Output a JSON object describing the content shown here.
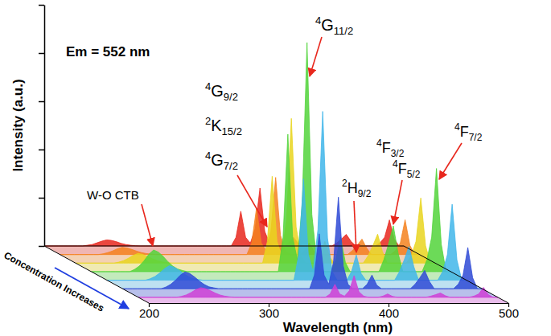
{
  "chart_data": {
    "type": "waterfall",
    "x_label": "Wavelength (nm)",
    "y_label": "Intensity (a.u.)",
    "z_label": "Concentration Increases",
    "annotations": [
      {
        "text": "Em = 552 nm"
      },
      {
        "text": "4G11/2"
      },
      {
        "text": "4G9/2"
      },
      {
        "text": "2K15/2"
      },
      {
        "text": "4G7/2"
      },
      {
        "text": "2H9/2"
      },
      {
        "text": "4F3/2"
      },
      {
        "text": "4F5/2"
      },
      {
        "text": "4F7/2"
      },
      {
        "text": "W-O CTB"
      }
    ],
    "xlim": [
      200,
      500
    ],
    "xticks": [
      200,
      300,
      400,
      500
    ],
    "ylim": [
      0,
      10
    ],
    "yticks": [
      0,
      2,
      4,
      6,
      8,
      10
    ],
    "tick_labels": "x",
    "x": [
      200,
      204,
      208,
      212,
      216,
      220,
      224,
      228,
      232,
      236,
      240,
      244,
      248,
      252,
      256,
      260,
      264,
      268,
      272,
      276,
      280,
      284,
      288,
      292,
      296,
      300,
      304,
      308,
      312,
      316,
      320,
      324,
      328,
      332,
      336,
      340,
      344,
      348,
      352,
      356,
      360,
      364,
      368,
      372,
      376,
      380,
      384,
      388,
      392,
      396,
      400,
      404,
      408,
      412,
      416,
      420,
      424,
      428,
      432,
      436,
      440,
      444,
      448,
      452,
      456,
      460,
      464,
      468,
      472,
      476,
      480,
      484,
      488,
      492,
      496,
      500
    ],
    "series": [
      {
        "color": "#e8271d",
        "values": [
          0,
          0,
          0,
          0,
          0,
          0,
          0,
          0,
          0,
          0.03,
          0.06,
          0.13,
          0.2,
          0.25,
          0.23,
          0.18,
          0.11,
          0.06,
          0.03,
          0.01,
          0,
          0,
          0,
          0,
          0,
          0,
          0,
          0,
          0,
          0,
          0,
          0,
          0,
          0,
          0,
          0,
          0,
          0,
          0,
          0,
          0.36,
          1.44,
          0.36,
          0.12,
          0.72,
          2.4,
          0.6,
          0.12,
          0,
          0,
          0,
          0.12,
          0.36,
          0.1,
          0,
          0,
          0,
          0,
          0,
          0,
          0,
          0.12,
          0.29,
          0.48,
          0.19,
          0,
          0,
          0,
          0,
          0,
          0.12,
          0.36,
          1.08,
          0.29,
          0,
          0
        ]
      },
      {
        "color": "#f5821f",
        "values": [
          0,
          0,
          0,
          0,
          0,
          0,
          0,
          0,
          0,
          0.03,
          0.08,
          0.15,
          0.24,
          0.3,
          0.27,
          0.21,
          0.14,
          0.08,
          0.04,
          0.02,
          0,
          0,
          0,
          0,
          0,
          0,
          0,
          0,
          0,
          0,
          0,
          0,
          0,
          0,
          0,
          0,
          0,
          0,
          0,
          0,
          0.48,
          1.92,
          0.48,
          0.16,
          0.96,
          3.2,
          0.8,
          0.16,
          0,
          0,
          0,
          0.16,
          0.48,
          0.13,
          0,
          0,
          0,
          0,
          0,
          0,
          0,
          0.16,
          0.38,
          0.64,
          0.26,
          0,
          0,
          0,
          0,
          0,
          0.16,
          0.48,
          1.44,
          0.38,
          0,
          0
        ]
      },
      {
        "color": "#e9d51f",
        "values": [
          0,
          0,
          0,
          0,
          0,
          0,
          0,
          0,
          0,
          0.04,
          0.1,
          0.2,
          0.32,
          0.4,
          0.36,
          0.28,
          0.18,
          0.1,
          0.05,
          0.02,
          0,
          0,
          0,
          0,
          0,
          0,
          0,
          0,
          0,
          0,
          0,
          0,
          0,
          0,
          0,
          0,
          0,
          0,
          0,
          0,
          0.9,
          3.6,
          0.9,
          0.3,
          1.8,
          6,
          1.5,
          0.3,
          0,
          0,
          0,
          0.3,
          0.9,
          0.24,
          0,
          0,
          0,
          0,
          0,
          0,
          0,
          0.3,
          0.72,
          1.2,
          0.48,
          0,
          0,
          0,
          0,
          0,
          0.3,
          0.9,
          2.7,
          0.72,
          0,
          0
        ]
      },
      {
        "color": "#52d43b",
        "values": [
          0,
          0,
          0,
          0,
          0,
          0,
          0,
          0,
          0,
          0.09,
          0.23,
          0.45,
          0.72,
          0.9,
          0.81,
          0.63,
          0.41,
          0.23,
          0.11,
          0.05,
          0,
          0,
          0,
          0,
          0,
          0,
          0,
          0,
          0,
          0,
          0,
          0,
          0,
          0,
          0,
          0,
          0,
          0,
          0,
          0,
          1.43,
          5.7,
          1.43,
          0.48,
          2.85,
          9.5,
          2.38,
          0.48,
          0,
          0,
          0,
          0.48,
          1.43,
          0.38,
          0,
          0,
          0,
          0,
          0,
          0,
          0,
          0.48,
          1.14,
          1.9,
          0.76,
          0,
          0,
          0,
          0,
          0,
          0.48,
          1.43,
          4.28,
          1.14,
          0,
          0
        ]
      },
      {
        "color": "#41b6ea",
        "values": [
          0,
          0,
          0,
          0,
          0,
          0,
          0,
          0,
          0,
          0.06,
          0.15,
          0.3,
          0.48,
          0.6,
          0.54,
          0.42,
          0.27,
          0.15,
          0.07,
          0.03,
          0,
          0,
          0,
          0,
          0,
          0,
          0,
          0,
          0,
          0,
          0,
          0,
          0,
          0,
          0,
          0,
          0,
          0,
          0,
          0,
          1.05,
          4.2,
          1.05,
          0.35,
          2.1,
          7,
          1.75,
          0.35,
          0,
          0,
          0,
          0.35,
          1.05,
          0.28,
          0,
          0,
          0,
          0,
          0,
          0,
          0,
          0.35,
          0.84,
          1.4,
          0.56,
          0,
          0,
          0,
          0,
          0,
          0.35,
          1.05,
          3.15,
          0.84,
          0,
          0
        ]
      },
      {
        "color": "#2f4ad6",
        "values": [
          0,
          0,
          0,
          0,
          0,
          0,
          0,
          0,
          0,
          0.07,
          0.18,
          0.35,
          0.56,
          0.7,
          0.63,
          0.49,
          0.32,
          0.18,
          0.08,
          0.04,
          0,
          0,
          0,
          0,
          0,
          0,
          0,
          0,
          0,
          0,
          0,
          0,
          0,
          0,
          0,
          0,
          0,
          0,
          0,
          0,
          0.57,
          2.28,
          0.57,
          0.19,
          1.14,
          3.8,
          0.95,
          0.19,
          0,
          0,
          0,
          0.19,
          0.57,
          0.15,
          0,
          0,
          0,
          0,
          0,
          0,
          0,
          0.19,
          0.46,
          0.76,
          0.3,
          0,
          0,
          0,
          0,
          0,
          0.19,
          0.57,
          1.71,
          0.46,
          0,
          0
        ]
      },
      {
        "color": "#cf3fd6",
        "values": [
          0,
          0,
          0,
          0,
          0,
          0,
          0,
          0,
          0,
          0.04,
          0.1,
          0.2,
          0.32,
          0.4,
          0.36,
          0.28,
          0.18,
          0.1,
          0.05,
          0.02,
          0,
          0,
          0,
          0,
          0,
          0,
          0,
          0,
          0,
          0,
          0,
          0,
          0,
          0,
          0,
          0,
          0,
          0,
          0,
          0,
          0.14,
          0.54,
          0.14,
          0.05,
          0.27,
          0.9,
          0.23,
          0.05,
          0,
          0,
          0,
          0.05,
          0.14,
          0.04,
          0,
          0,
          0,
          0,
          0,
          0,
          0,
          0.05,
          0.11,
          0.18,
          0.07,
          0,
          0,
          0,
          0,
          0,
          0.05,
          0.14,
          0.41,
          0.11,
          0,
          0
        ]
      }
    ]
  }
}
